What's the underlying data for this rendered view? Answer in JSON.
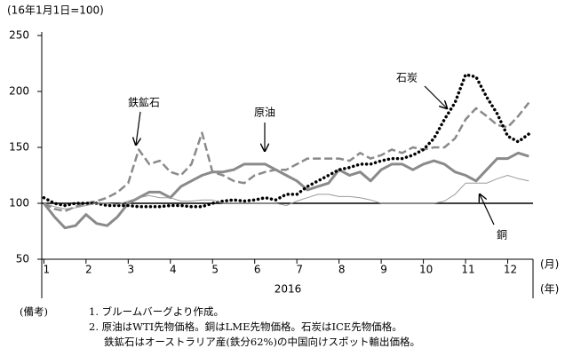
{
  "chart_data": {
    "type": "line",
    "y_unit_label": "(16年1月1日=100)",
    "x_unit_month": "(月)",
    "x_unit_year": "(年)",
    "x_label": "2016",
    "x": [
      1,
      1.25,
      1.5,
      1.75,
      2,
      2.25,
      2.5,
      2.75,
      3,
      3.25,
      3.5,
      3.75,
      4,
      4.25,
      4.5,
      4.75,
      5,
      5.25,
      5.5,
      5.75,
      6,
      6.25,
      6.5,
      6.75,
      7,
      7.25,
      7.5,
      7.75,
      8,
      8.25,
      8.5,
      8.75,
      9,
      9.25,
      9.5,
      9.75,
      10,
      10.25,
      10.5,
      10.75,
      11,
      11.25,
      11.5,
      11.75,
      12,
      12.25,
      12.5
    ],
    "xlim": [
      0.95,
      12.6
    ],
    "xticks": [
      1,
      2,
      3,
      4,
      5,
      6,
      7,
      8,
      9,
      10,
      11,
      12
    ],
    "ylim": [
      50,
      250
    ],
    "yticks": [
      50,
      100,
      150,
      200,
      250
    ],
    "reference_line": 100,
    "series": [
      {
        "name": "鉄鉱石",
        "color": "#8a8a8a",
        "style": "dashed",
        "width": 2.5,
        "values": [
          100,
          95,
          93,
          97,
          100,
          102,
          105,
          110,
          118,
          148,
          135,
          138,
          128,
          125,
          135,
          163,
          128,
          125,
          120,
          118,
          125,
          128,
          130,
          130,
          135,
          140,
          140,
          140,
          140,
          138,
          145,
          140,
          143,
          148,
          145,
          150,
          148,
          150,
          150,
          158,
          175,
          185,
          178,
          170,
          168,
          178,
          190
        ]
      },
      {
        "name": "原油",
        "color": "#8a8a8a",
        "style": "solid",
        "width": 3,
        "values": [
          100,
          88,
          78,
          80,
          90,
          82,
          80,
          88,
          100,
          105,
          110,
          110,
          105,
          115,
          120,
          125,
          128,
          128,
          130,
          135,
          135,
          135,
          130,
          125,
          120,
          112,
          115,
          118,
          130,
          125,
          128,
          120,
          130,
          135,
          135,
          130,
          135,
          138,
          135,
          128,
          125,
          120,
          130,
          140,
          140,
          145,
          142
        ]
      },
      {
        "name": "石炭",
        "color": "#000000",
        "style": "dotted",
        "width": 3.5,
        "values": [
          105,
          100,
          98,
          100,
          100,
          100,
          98,
          98,
          98,
          97,
          97,
          97,
          98,
          98,
          97,
          97,
          100,
          102,
          103,
          102,
          103,
          105,
          103,
          108,
          108,
          115,
          120,
          125,
          130,
          132,
          135,
          135,
          138,
          140,
          140,
          143,
          148,
          158,
          175,
          190,
          215,
          213,
          195,
          180,
          160,
          155,
          162
        ]
      },
      {
        "name": "銅",
        "color": "#9a9a9a",
        "style": "solid",
        "width": 1,
        "values": [
          100,
          97,
          95,
          96,
          98,
          100,
          100,
          99,
          102,
          105,
          107,
          105,
          105,
          102,
          102,
          103,
          103,
          100,
          100,
          100,
          100,
          100,
          100,
          98,
          102,
          105,
          108,
          108,
          106,
          106,
          105,
          103,
          100,
          100,
          100,
          100,
          100,
          100,
          102,
          108,
          118,
          118,
          118,
          122,
          125,
          122,
          120
        ]
      }
    ],
    "notes": [
      "(備考)",
      "1. ブルームバーグより作成。",
      "2. 原油はWTI先物価格。銅はLME先物価格。石炭はICE先物価格。",
      "鉄鉱石はオーストラリア産(鉄分62%)の中国向けスポット輸出価格。"
    ]
  }
}
